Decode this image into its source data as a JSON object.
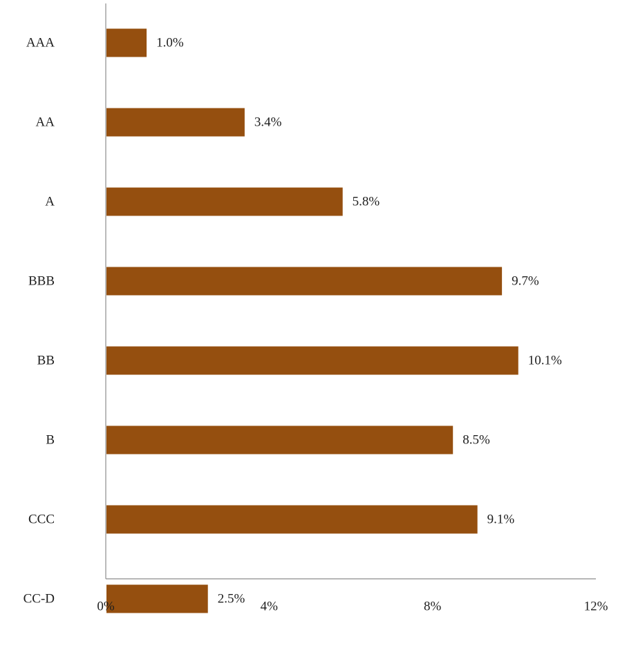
{
  "chart_data": {
    "type": "bar",
    "orientation": "horizontal",
    "categories": [
      "AAA",
      "AA",
      "A",
      "BBB",
      "BB",
      "B",
      "CCC",
      "CC-D"
    ],
    "values": [
      1.0,
      3.4,
      5.8,
      9.7,
      10.1,
      8.5,
      9.1,
      2.5
    ],
    "value_labels": [
      "1.0%",
      "3.4%",
      "5.8%",
      "9.7%",
      "10.1%",
      "8.5%",
      "9.1%",
      "2.5%"
    ],
    "x_ticks": [
      0,
      4,
      8,
      12
    ],
    "x_tick_labels": [
      "0%",
      "4%",
      "8%",
      "12%"
    ],
    "xlim": [
      0,
      12
    ],
    "title": "",
    "xlabel": "",
    "ylabel": "",
    "grid": false,
    "legend": "none",
    "bar_color": "#954f0f",
    "axis_color": "#8c8c8c"
  }
}
